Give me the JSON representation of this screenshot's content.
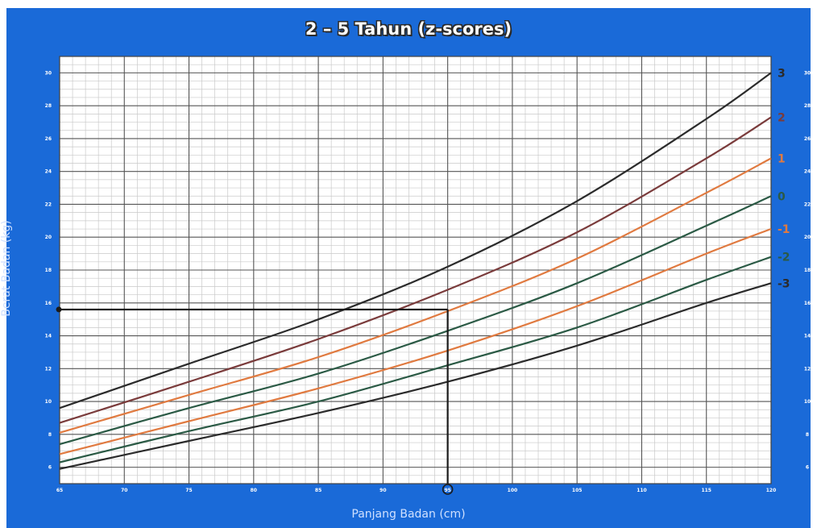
{
  "chart_data": {
    "type": "line",
    "title": "2 – 5 Tahun (z-scores)",
    "xlabel": "Panjang Badan (cm)",
    "ylabel": "Berat Badan (kg)",
    "xlim": [
      65,
      120
    ],
    "ylim": [
      5,
      31
    ],
    "x_ticks": [
      65,
      70,
      75,
      80,
      85,
      90,
      95,
      100,
      105,
      110,
      115,
      120
    ],
    "y_ticks": [
      6,
      8,
      10,
      12,
      14,
      16,
      18,
      20,
      22,
      24,
      26,
      28,
      30
    ],
    "grid": true,
    "marker": {
      "x": 95,
      "y": 15.6
    },
    "series": [
      {
        "name": "3",
        "color": "#2b2b2b",
        "x": [
          65,
          75,
          85,
          95,
          105,
          115,
          120
        ],
        "y": [
          9.6,
          12.3,
          15.0,
          18.2,
          22.2,
          27.2,
          30.0
        ]
      },
      {
        "name": "2",
        "color": "#7a3b3b",
        "x": [
          65,
          75,
          85,
          95,
          105,
          115,
          120
        ],
        "y": [
          8.7,
          11.2,
          13.8,
          16.8,
          20.3,
          24.8,
          27.3
        ]
      },
      {
        "name": "1",
        "color": "#e07a40",
        "x": [
          65,
          75,
          85,
          95,
          105,
          115,
          120
        ],
        "y": [
          8.1,
          10.4,
          12.7,
          15.5,
          18.7,
          22.7,
          24.8
        ]
      },
      {
        "name": "0",
        "color": "#2b5a45",
        "x": [
          65,
          75,
          85,
          95,
          105,
          115,
          120
        ],
        "y": [
          7.4,
          9.6,
          11.7,
          14.3,
          17.2,
          20.7,
          22.5
        ]
      },
      {
        "name": "-1",
        "color": "#e07a40",
        "x": [
          65,
          75,
          85,
          95,
          105,
          115,
          120
        ],
        "y": [
          6.8,
          8.8,
          10.8,
          13.1,
          15.8,
          19.0,
          20.5
        ]
      },
      {
        "name": "-2",
        "color": "#2b5a45",
        "x": [
          65,
          75,
          85,
          95,
          105,
          115,
          120
        ],
        "y": [
          6.3,
          8.2,
          10.0,
          12.2,
          14.5,
          17.4,
          18.8
        ]
      },
      {
        "name": "-3",
        "color": "#2b2b2b",
        "x": [
          65,
          75,
          85,
          95,
          105,
          115,
          120
        ],
        "y": [
          5.9,
          7.6,
          9.3,
          11.2,
          13.4,
          16.0,
          17.2
        ]
      }
    ]
  }
}
